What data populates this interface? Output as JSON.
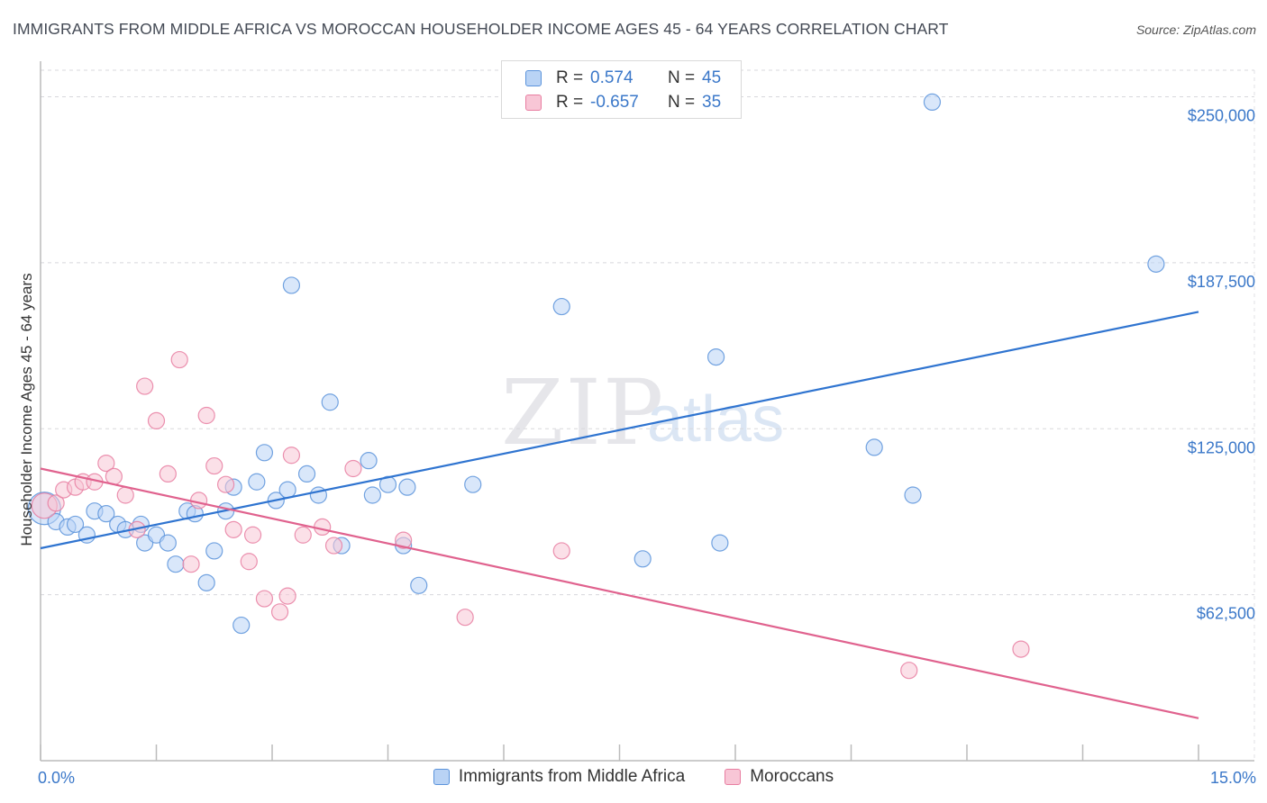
{
  "header": {
    "title": "IMMIGRANTS FROM MIDDLE AFRICA VS MOROCCAN HOUSEHOLDER INCOME AGES 45 - 64 YEARS CORRELATION CHART",
    "source": "Source: ZipAtlas.com"
  },
  "watermark": {
    "zip": "ZIP",
    "atlas": "atlas"
  },
  "legend": {
    "rows": [
      {
        "r_label": "R =",
        "r_value": "0.574",
        "n_label": "N =",
        "n_value": "45"
      },
      {
        "r_label": "R =",
        "r_value": "-0.657",
        "n_label": "N =",
        "n_value": "35"
      }
    ],
    "bottom": [
      "Immigrants from Middle Africa",
      "Moroccans"
    ]
  },
  "chart_data": {
    "type": "scatter",
    "title": "IMMIGRANTS FROM MIDDLE AFRICA VS MOROCCAN HOUSEHOLDER INCOME AGES 45 - 64 YEARS CORRELATION CHART",
    "xlabel": "",
    "ylabel": "Householder Income Ages 45 - 64 years",
    "xlim": [
      0,
      15
    ],
    "ylim": [
      0,
      260000
    ],
    "x_tick_labels": [
      "0.0%",
      "15.0%"
    ],
    "y_ticks": [
      62500,
      125000,
      187500,
      250000
    ],
    "y_tick_labels": [
      "$62,500",
      "$125,000",
      "$187,500",
      "$250,000"
    ],
    "colors": {
      "blue": "#5b93db",
      "blue_fill": "#b9d3f5",
      "blue_line": "#2f74d0",
      "pink": "#e87ea1",
      "pink_fill": "#f8c6d6",
      "pink_line": "#e0628e"
    },
    "series": [
      {
        "name": "Immigrants from Middle Africa",
        "color": "blue",
        "trend": {
          "x": [
            0,
            15
          ],
          "y": [
            80000,
            169000
          ]
        },
        "points": [
          [
            0.05,
            95000,
            18
          ],
          [
            0.2,
            90000,
            9
          ],
          [
            0.35,
            88000,
            9
          ],
          [
            0.45,
            89000,
            9
          ],
          [
            0.6,
            85000,
            9
          ],
          [
            0.7,
            94000,
            9
          ],
          [
            0.85,
            93000,
            9
          ],
          [
            1.0,
            89000,
            9
          ],
          [
            1.1,
            87000,
            9
          ],
          [
            1.3,
            89000,
            9
          ],
          [
            1.35,
            82000,
            9
          ],
          [
            1.5,
            85000,
            9
          ],
          [
            1.65,
            82000,
            9
          ],
          [
            1.75,
            74000,
            9
          ],
          [
            1.9,
            94000,
            9
          ],
          [
            2.0,
            93000,
            9
          ],
          [
            2.15,
            67000,
            9
          ],
          [
            2.25,
            79000,
            9
          ],
          [
            2.4,
            94000,
            9
          ],
          [
            2.5,
            103000,
            9
          ],
          [
            2.6,
            51000,
            9
          ],
          [
            2.8,
            105000,
            9
          ],
          [
            2.9,
            116000,
            9
          ],
          [
            3.05,
            98000,
            9
          ],
          [
            3.2,
            102000,
            9
          ],
          [
            3.25,
            179000,
            9
          ],
          [
            3.45,
            108000,
            9
          ],
          [
            3.6,
            100000,
            9
          ],
          [
            3.75,
            135000,
            9
          ],
          [
            3.9,
            81000,
            9
          ],
          [
            4.25,
            113000,
            9
          ],
          [
            4.3,
            100000,
            9
          ],
          [
            4.5,
            104000,
            9
          ],
          [
            4.7,
            81000,
            9
          ],
          [
            4.75,
            103000,
            9
          ],
          [
            4.9,
            66000,
            9
          ],
          [
            5.6,
            104000,
            9
          ],
          [
            6.75,
            171000,
            9
          ],
          [
            7.8,
            76000,
            9
          ],
          [
            8.75,
            152000,
            9
          ],
          [
            8.8,
            82000,
            9
          ],
          [
            10.8,
            118000,
            9
          ],
          [
            11.3,
            100000,
            9
          ],
          [
            11.55,
            248000,
            9
          ],
          [
            14.45,
            187000,
            9
          ]
        ]
      },
      {
        "name": "Moroccans",
        "color": "pink",
        "trend": {
          "x": [
            0,
            15
          ],
          "y": [
            110000,
            16000
          ]
        },
        "points": [
          [
            0.05,
            96000,
            14
          ],
          [
            0.2,
            97000,
            9
          ],
          [
            0.3,
            102000,
            9
          ],
          [
            0.45,
            103000,
            9
          ],
          [
            0.55,
            105000,
            9
          ],
          [
            0.7,
            105000,
            9
          ],
          [
            0.85,
            112000,
            9
          ],
          [
            0.95,
            107000,
            9
          ],
          [
            1.1,
            100000,
            9
          ],
          [
            1.25,
            87000,
            9
          ],
          [
            1.35,
            141000,
            9
          ],
          [
            1.5,
            128000,
            9
          ],
          [
            1.65,
            108000,
            9
          ],
          [
            1.8,
            151000,
            9
          ],
          [
            1.95,
            74000,
            9
          ],
          [
            2.05,
            98000,
            9
          ],
          [
            2.15,
            130000,
            9
          ],
          [
            2.25,
            111000,
            9
          ],
          [
            2.4,
            104000,
            9
          ],
          [
            2.5,
            87000,
            9
          ],
          [
            2.7,
            75000,
            9
          ],
          [
            2.75,
            85000,
            9
          ],
          [
            2.9,
            61000,
            9
          ],
          [
            3.1,
            56000,
            9
          ],
          [
            3.2,
            62000,
            9
          ],
          [
            3.25,
            115000,
            9
          ],
          [
            3.4,
            85000,
            9
          ],
          [
            3.65,
            88000,
            9
          ],
          [
            3.8,
            81000,
            9
          ],
          [
            4.05,
            110000,
            9
          ],
          [
            4.7,
            83000,
            9
          ],
          [
            5.5,
            54000,
            9
          ],
          [
            6.75,
            79000,
            9
          ],
          [
            11.25,
            34000,
            9
          ],
          [
            12.7,
            42000,
            9
          ]
        ]
      }
    ]
  }
}
